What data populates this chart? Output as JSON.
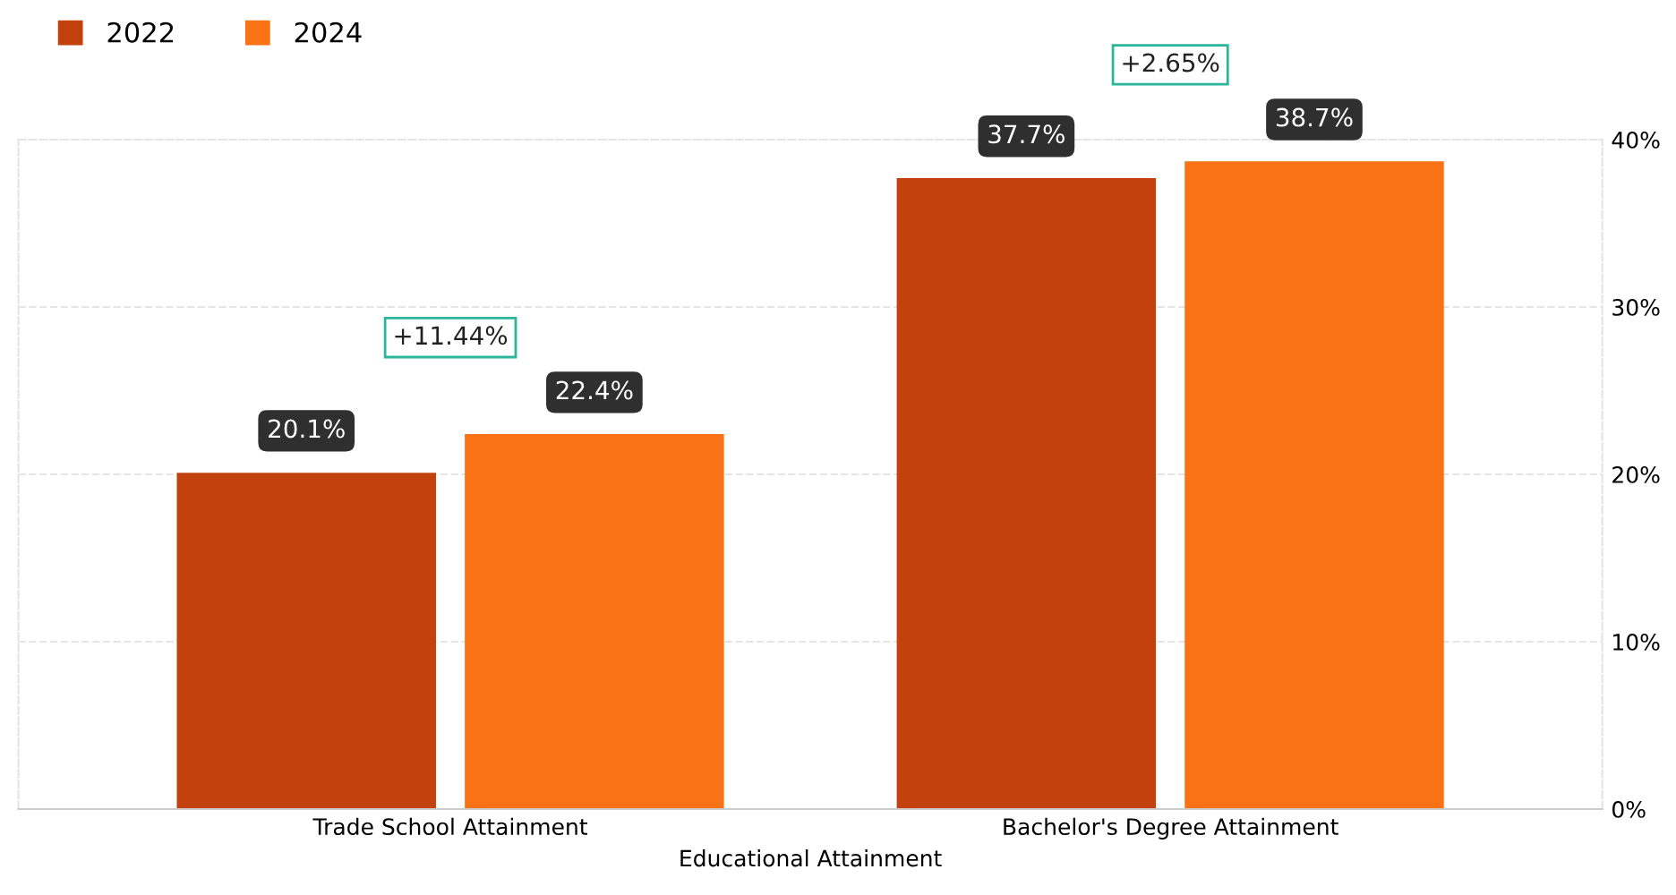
{
  "chart_data": {
    "type": "bar",
    "xlabel": "Educational Attainment",
    "categories": [
      "Trade School Attainment",
      "Bachelor's Degree Attainment"
    ],
    "series": [
      {
        "name": "2022",
        "color": "#c2410c",
        "values": [
          20.1,
          37.7
        ],
        "value_labels": [
          "20.1%",
          "37.7%"
        ]
      },
      {
        "name": "2024",
        "color": "#f97316",
        "values": [
          22.4,
          38.7
        ],
        "value_labels": [
          "22.4%",
          "38.7%"
        ]
      }
    ],
    "annotations": [
      "+11.44%",
      "+2.65%"
    ],
    "ylim": [
      0,
      40
    ],
    "yticks": [
      {
        "value": 0,
        "label": "0%"
      },
      {
        "value": 10,
        "label": "10%"
      },
      {
        "value": 20,
        "label": "20%"
      },
      {
        "value": 30,
        "label": "30%"
      },
      {
        "value": 40,
        "label": "40%"
      }
    ],
    "grid": "y",
    "legend": "top left"
  }
}
